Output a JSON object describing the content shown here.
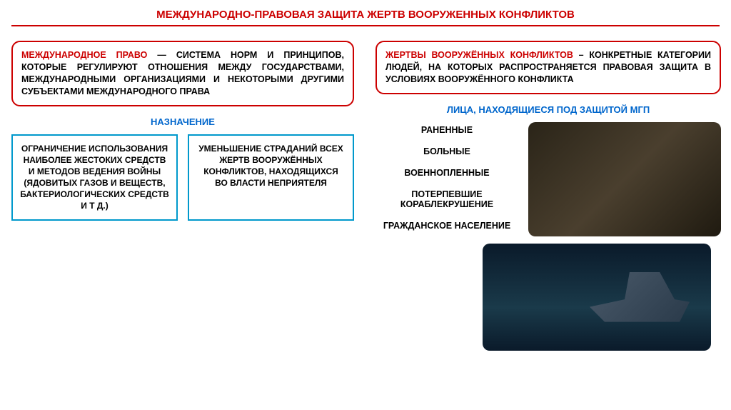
{
  "title": "МЕЖДУНАРОДНО-ПРАВОВАЯ ЗАЩИТА ЖЕРТВ ВООРУЖЕННЫХ КОНФЛИКТОВ",
  "left": {
    "definition_term": "МЕЖДУНАРОДНОЕ ПРАВО",
    "definition_text": " — СИСТЕМА НОРМ И ПРИНЦИПОВ, КОТОРЫЕ РЕГУЛИРУЮТ ОТНОШЕНИЯ МЕЖДУ ГОСУДАРСТВАМИ, МЕЖДУНАРОДНЫМИ ОРГАНИЗАЦИЯМИ И НЕКОТОРЫМИ ДРУГИМИ СУБЪЕКТАМИ МЕЖДУНАРОДНОГО ПРАВА",
    "purpose_label": "НАЗНАЧЕНИЕ",
    "purpose_boxes": [
      "ОГРАНИЧЕНИЕ ИСПОЛЬЗОВАНИЯ НАИБОЛЕЕ ЖЕСТОКИХ СРЕДСТВ И МЕТОДОВ ВЕДЕНИЯ ВОЙНЫ (ЯДОВИТЫХ ГАЗОВ И ВЕЩЕСТВ, БАКТЕРИОЛОГИЧЕСКИХ СРЕДСТВ И Т Д.)",
      "УМЕНЬШЕНИЕ СТРАДАНИЙ ВСЕХ ЖЕРТВ ВООРУЖЁННЫХ КОНФЛИКТОВ, НАХОДЯЩИХСЯ ВО ВЛАСТИ НЕПРИЯТЕЛЯ"
    ]
  },
  "right": {
    "definition_term": "ЖЕРТВЫ ВООРУЖЁННЫХ КОНФЛИКТОВ",
    "definition_text": " – КОНКРЕТНЫЕ КАТЕГОРИИ ЛЮДЕЙ, НА КОТОРЫХ РАСПРОСТРАНЯЕТСЯ ПРАВОВАЯ ЗАЩИТА В УСЛОВИЯХ ВООРУЖЁННОГО КОНФЛИКТА",
    "protected_label": "ЛИЦА, НАХОДЯЩИЕСЯ ПОД ЗАЩИТОЙ МГП",
    "protected_items": [
      "РАНЕННЫЕ",
      "БОЛЬНЫЕ",
      "ВОЕННОПЛЕННЫЕ",
      "ПОТЕРПЕВШИЕ КОРАБЛЕКРУШЕНИЕ",
      "ГРАЖДАНСКОЕ НАСЕЛЕНИЕ"
    ]
  },
  "colors": {
    "title_red": "#cc0000",
    "box_red": "#cc0000",
    "box_blue": "#0099cc",
    "label_blue": "#0066cc",
    "text_black": "#000000",
    "background": "#ffffff"
  }
}
